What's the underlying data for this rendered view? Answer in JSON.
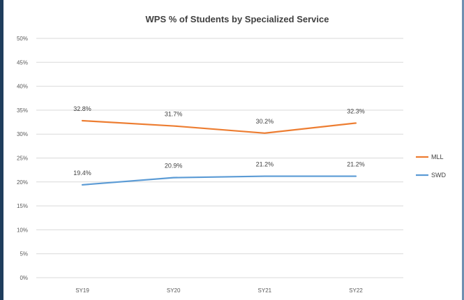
{
  "chart_data": {
    "type": "line",
    "title": "WPS % of Students by Specialized Service",
    "xlabel": "",
    "ylabel": "",
    "categories": [
      "SY19",
      "SY20",
      "SY21",
      "SY22"
    ],
    "ylim": [
      0,
      50
    ],
    "yticks": [
      "0%",
      "5%",
      "10%",
      "15%",
      "20%",
      "25%",
      "30%",
      "35%",
      "40%",
      "45%",
      "50%"
    ],
    "grid": true,
    "legend_position": "right",
    "series": [
      {
        "name": "MLL",
        "color": "#ed7d31",
        "values": [
          32.8,
          31.7,
          30.2,
          32.3
        ],
        "labels": [
          "32.8%",
          "31.7%",
          "30.2%",
          "32.3%"
        ]
      },
      {
        "name": "SWD",
        "color": "#5b9bd5",
        "values": [
          19.4,
          20.9,
          21.2,
          21.2
        ],
        "labels": [
          "19.4%",
          "20.9%",
          "21.2%",
          "21.2%"
        ]
      }
    ]
  }
}
